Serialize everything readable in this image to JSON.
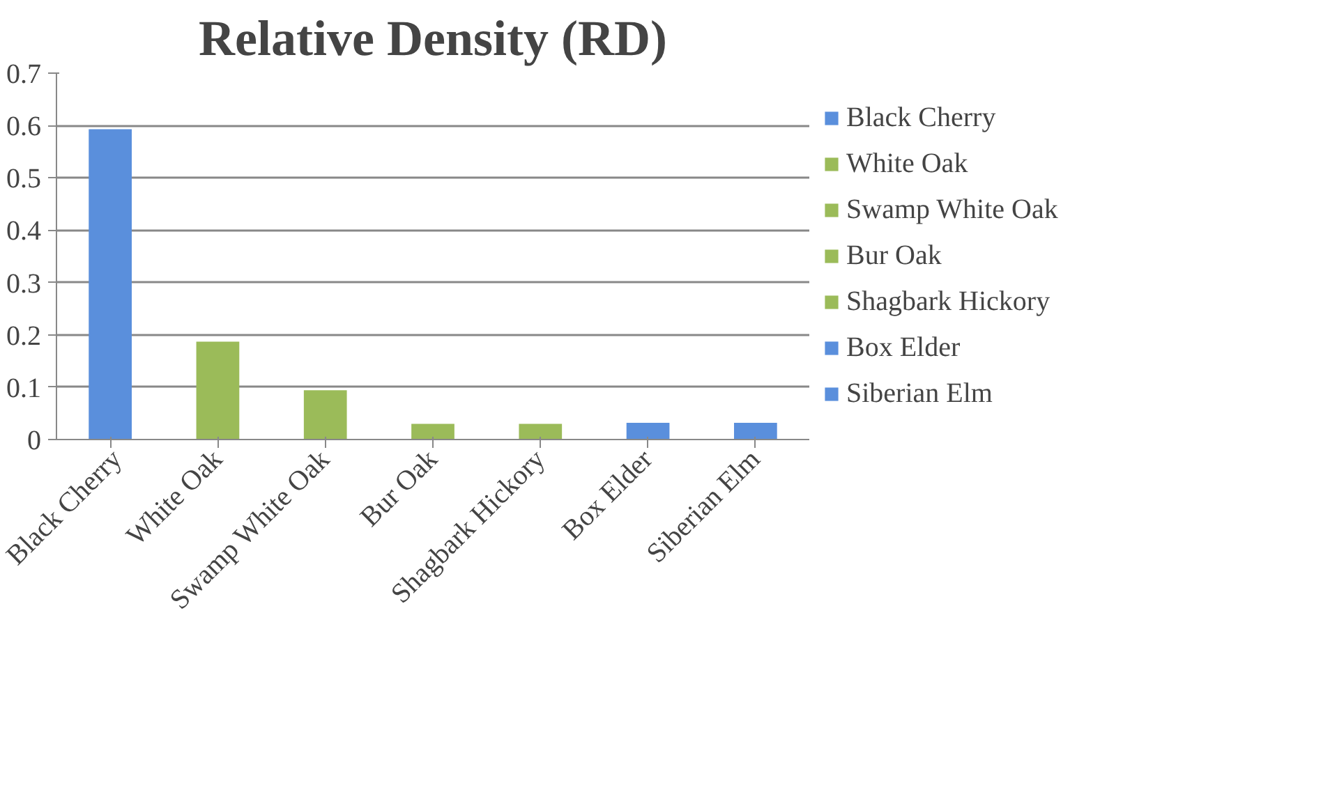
{
  "chart_data": {
    "type": "bar",
    "title": "Relative Density (RD)",
    "categories": [
      "Black Cherry",
      "White Oak",
      "Swamp White Oak",
      "Bur Oak",
      "Shagbark Hickory",
      "Box Elder",
      "Siberian Elm"
    ],
    "series": [
      {
        "name": "Black Cherry",
        "color": "#5a8fdc",
        "values": [
          0.593,
          null,
          null,
          null,
          null,
          null,
          null
        ]
      },
      {
        "name": "White Oak",
        "color": "#9bbb59",
        "values": [
          null,
          0.187,
          null,
          null,
          null,
          null,
          null
        ]
      },
      {
        "name": "Swamp White Oak",
        "color": "#9bbb59",
        "values": [
          null,
          null,
          0.094,
          null,
          null,
          null,
          null
        ]
      },
      {
        "name": "Bur Oak",
        "color": "#9bbb59",
        "values": [
          null,
          null,
          null,
          0.03,
          null,
          null,
          null
        ]
      },
      {
        "name": "Shagbark Hickory",
        "color": "#9bbb59",
        "values": [
          null,
          null,
          null,
          null,
          0.03,
          null,
          null
        ]
      },
      {
        "name": "Box Elder",
        "color": "#5a8fdc",
        "values": [
          null,
          null,
          null,
          null,
          null,
          0.032,
          null
        ]
      },
      {
        "name": "Siberian Elm",
        "color": "#5a8fdc",
        "values": [
          null,
          null,
          null,
          null,
          null,
          null,
          0.032
        ]
      }
    ],
    "ylim": [
      0,
      0.7
    ],
    "yticks": [
      0,
      0.1,
      0.2,
      0.3,
      0.4,
      0.5,
      0.6,
      0.7
    ],
    "grid": "y",
    "legend": "right"
  }
}
